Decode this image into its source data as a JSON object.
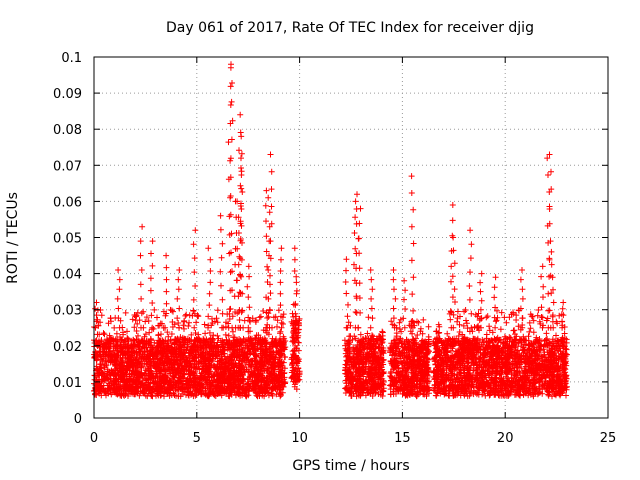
{
  "chart_data": {
    "type": "scatter",
    "title": "Day 061 of 2017, Rate Of TEC Index for receiver djig",
    "xlabel": "GPS time / hours",
    "ylabel": "ROTI / TECUs",
    "xlim": [
      0,
      25
    ],
    "ylim": [
      0,
      0.1
    ],
    "xticks": [
      0,
      5,
      10,
      15,
      20,
      25
    ],
    "xtick_labels": [
      "0",
      "5",
      "10",
      "15",
      "20",
      "25"
    ],
    "yticks": [
      0,
      0.01,
      0.02,
      0.03,
      0.04,
      0.05,
      0.06,
      0.07,
      0.08,
      0.09,
      0.1
    ],
    "ytick_labels": [
      "0",
      "0.01",
      "0.02",
      "0.03",
      "0.04",
      "0.05",
      "0.06",
      "0.07",
      "0.08",
      "0.09",
      "0.1"
    ],
    "grid": true,
    "marker": "plus",
    "color": "#ff0000",
    "data_segments": [
      {
        "x_start": 0.0,
        "x_end": 9.3,
        "y_min": 0.004,
        "y_typical": 0.014,
        "y_spread": 0.022
      },
      {
        "x_start": 9.6,
        "x_end": 10.0,
        "y_min": 0.006,
        "y_typical": 0.02,
        "y_spread": 0.03
      },
      {
        "x_start": 12.2,
        "x_end": 14.1,
        "y_min": 0.004,
        "y_typical": 0.014,
        "y_spread": 0.02
      },
      {
        "x_start": 14.4,
        "x_end": 16.3,
        "y_min": 0.004,
        "y_typical": 0.014,
        "y_spread": 0.02
      },
      {
        "x_start": 16.5,
        "x_end": 23.0,
        "y_min": 0.004,
        "y_typical": 0.014,
        "y_spread": 0.022
      }
    ],
    "peaks": [
      {
        "x": 0.1,
        "y": 0.032
      },
      {
        "x": 1.2,
        "y": 0.041
      },
      {
        "x": 2.3,
        "y": 0.053
      },
      {
        "x": 2.8,
        "y": 0.049
      },
      {
        "x": 3.5,
        "y": 0.045
      },
      {
        "x": 4.1,
        "y": 0.041
      },
      {
        "x": 4.9,
        "y": 0.052
      },
      {
        "x": 5.6,
        "y": 0.047
      },
      {
        "x": 6.2,
        "y": 0.056
      },
      {
        "x": 6.6,
        "y": 0.097
      },
      {
        "x": 6.7,
        "y": 0.098
      },
      {
        "x": 6.9,
        "y": 0.06
      },
      {
        "x": 7.0,
        "y": 0.06
      },
      {
        "x": 7.1,
        "y": 0.084
      },
      {
        "x": 7.15,
        "y": 0.078
      },
      {
        "x": 7.2,
        "y": 0.072
      },
      {
        "x": 7.5,
        "y": 0.042
      },
      {
        "x": 8.4,
        "y": 0.063
      },
      {
        "x": 8.5,
        "y": 0.061
      },
      {
        "x": 8.6,
        "y": 0.073
      },
      {
        "x": 9.1,
        "y": 0.047
      },
      {
        "x": 9.8,
        "y": 0.047
      },
      {
        "x": 12.3,
        "y": 0.044
      },
      {
        "x": 12.7,
        "y": 0.06
      },
      {
        "x": 12.8,
        "y": 0.062
      },
      {
        "x": 12.9,
        "y": 0.058
      },
      {
        "x": 13.5,
        "y": 0.041
      },
      {
        "x": 14.6,
        "y": 0.041
      },
      {
        "x": 15.1,
        "y": 0.038
      },
      {
        "x": 15.5,
        "y": 0.067
      },
      {
        "x": 17.4,
        "y": 0.059
      },
      {
        "x": 17.5,
        "y": 0.05
      },
      {
        "x": 18.3,
        "y": 0.052
      },
      {
        "x": 18.8,
        "y": 0.04
      },
      {
        "x": 19.5,
        "y": 0.039
      },
      {
        "x": 20.8,
        "y": 0.041
      },
      {
        "x": 21.8,
        "y": 0.042
      },
      {
        "x": 22.1,
        "y": 0.072
      },
      {
        "x": 22.2,
        "y": 0.073
      },
      {
        "x": 22.3,
        "y": 0.046
      },
      {
        "x": 22.8,
        "y": 0.032
      }
    ]
  }
}
